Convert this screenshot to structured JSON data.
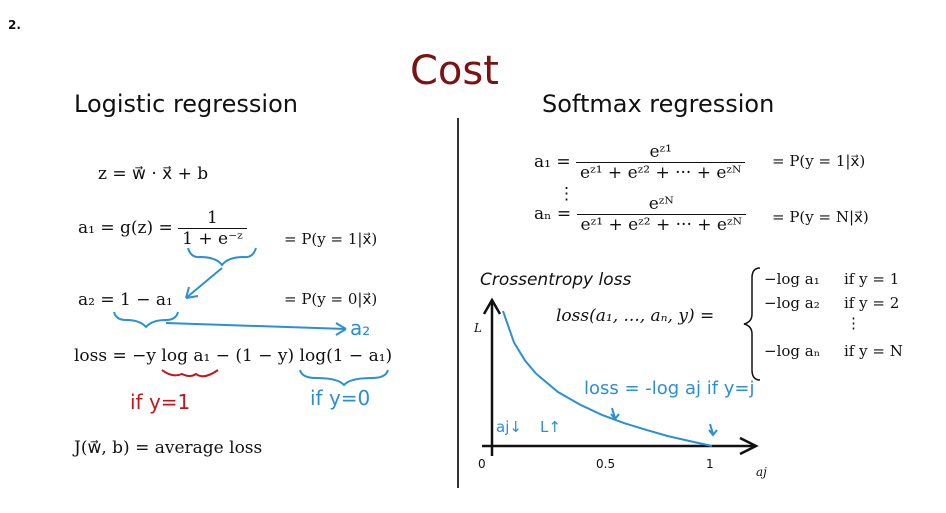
{
  "question_number": "2.",
  "title": "Cost",
  "left": {
    "heading": "Logistic regression",
    "z_eq": "z = w⃗ · x⃗ + b",
    "a1_lhs": "a₁ = g(z) =",
    "a1_num": "1",
    "a1_den": "1 + e⁻ᶻ",
    "a1_prob": "= P(y = 1|x⃗)",
    "a2_eq": "a₂ = 1 − a₁",
    "a2_prob": "= P(y = 0|x⃗)",
    "loss_eq": "loss = −y log a₁ − (1 − y) log(1 − a₁)",
    "cost_eq": "J(w⃗, b) = average loss",
    "note_a2": "a₂",
    "note_if_y1": "if y=1",
    "note_if_y0": "if y=0"
  },
  "right": {
    "heading": "Softmax regression",
    "a1_lhs": "a₁ =",
    "a1_num": "eᶻ¹",
    "a1_den": "eᶻ¹ + eᶻ² + ··· + eᶻᴺ",
    "a1_prob": "= P(y = 1|x⃗)",
    "vdots": "⋮",
    "aN_lhs": "aₙ =",
    "aN_num": "eᶻᴺ",
    "aN_den": "eᶻ¹ + eᶻ² + ··· + eᶻᴺ",
    "aN_prob": "= P(y = N|x⃗)",
    "crossentropy_label": "Crossentropy loss",
    "loss_fn": "loss(a₁, ..., aₙ, y) =",
    "cases": [
      {
        "expr": "−log a₁",
        "cond": "if y = 1"
      },
      {
        "expr": "−log a₂",
        "cond": "if y = 2"
      },
      {
        "expr": "⋮",
        "cond": ""
      },
      {
        "expr": "−log aₙ",
        "cond": "if y = N"
      }
    ],
    "note_loss": "loss = -log aj if y=j",
    "note_aj_down": "aj↓",
    "note_L_up": "L↑"
  },
  "chart_data": {
    "type": "line",
    "xlabel": "aj",
    "ylabel": "L",
    "xticks": [
      "0",
      "0.5",
      "1"
    ],
    "x": [
      0.05,
      0.1,
      0.15,
      0.2,
      0.3,
      0.4,
      0.5,
      0.6,
      0.7,
      0.8,
      0.9,
      1.0
    ],
    "y": [
      3.0,
      2.3,
      1.9,
      1.61,
      1.2,
      0.92,
      0.69,
      0.51,
      0.36,
      0.22,
      0.11,
      0.0
    ],
    "xlim": [
      0,
      1.15
    ],
    "ylim": [
      0,
      3.2
    ],
    "line_color": "#2b8fd6"
  }
}
